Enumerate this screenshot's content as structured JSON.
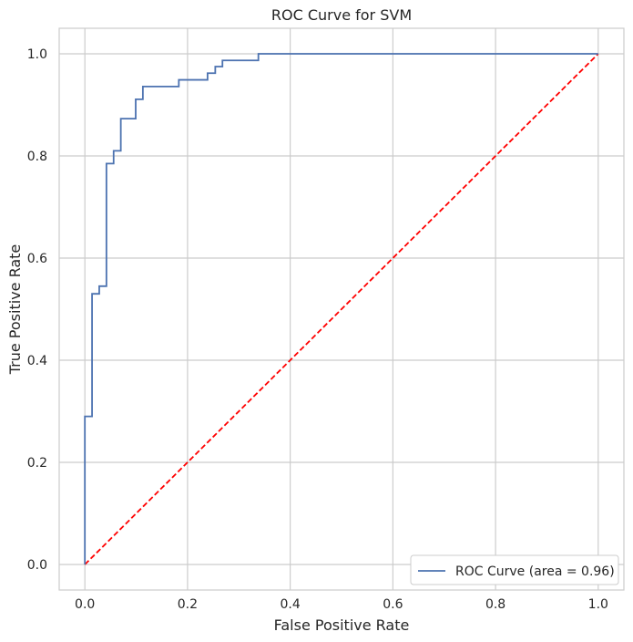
{
  "chart_data": {
    "type": "line",
    "title": "ROC Curve for SVM",
    "xlabel": "False Positive Rate",
    "ylabel": "True Positive Rate",
    "xlim": [
      -0.05,
      1.05
    ],
    "ylim": [
      -0.05,
      1.05
    ],
    "grid": true,
    "legend_position": "lower right",
    "x_ticks": [
      "0.0",
      "0.2",
      "0.4",
      "0.6",
      "0.8",
      "1.0"
    ],
    "y_ticks": [
      "0.0",
      "0.2",
      "0.4",
      "0.6",
      "0.8",
      "1.0"
    ],
    "series": [
      {
        "name": "ROC Curve (area = 0.96)",
        "color": "#4c72b0",
        "style": "step",
        "x": [
          0.0,
          0.0,
          0.014,
          0.014,
          0.028,
          0.028,
          0.042,
          0.042,
          0.056,
          0.056,
          0.07,
          0.07,
          0.099,
          0.099,
          0.113,
          0.113,
          0.183,
          0.183,
          0.239,
          0.239,
          0.254,
          0.254,
          0.268,
          0.268,
          0.338,
          0.338,
          1.0
        ],
        "y": [
          0.0,
          0.29,
          0.29,
          0.53,
          0.53,
          0.545,
          0.545,
          0.785,
          0.785,
          0.81,
          0.81,
          0.873,
          0.873,
          0.911,
          0.911,
          0.936,
          0.936,
          0.949,
          0.949,
          0.962,
          0.962,
          0.975,
          0.975,
          0.987,
          0.987,
          1.0,
          1.0
        ]
      },
      {
        "name": "",
        "color": "#ff0000",
        "style": "dashed",
        "x": [
          0.0,
          1.0
        ],
        "y": [
          0.0,
          1.0
        ]
      }
    ]
  }
}
